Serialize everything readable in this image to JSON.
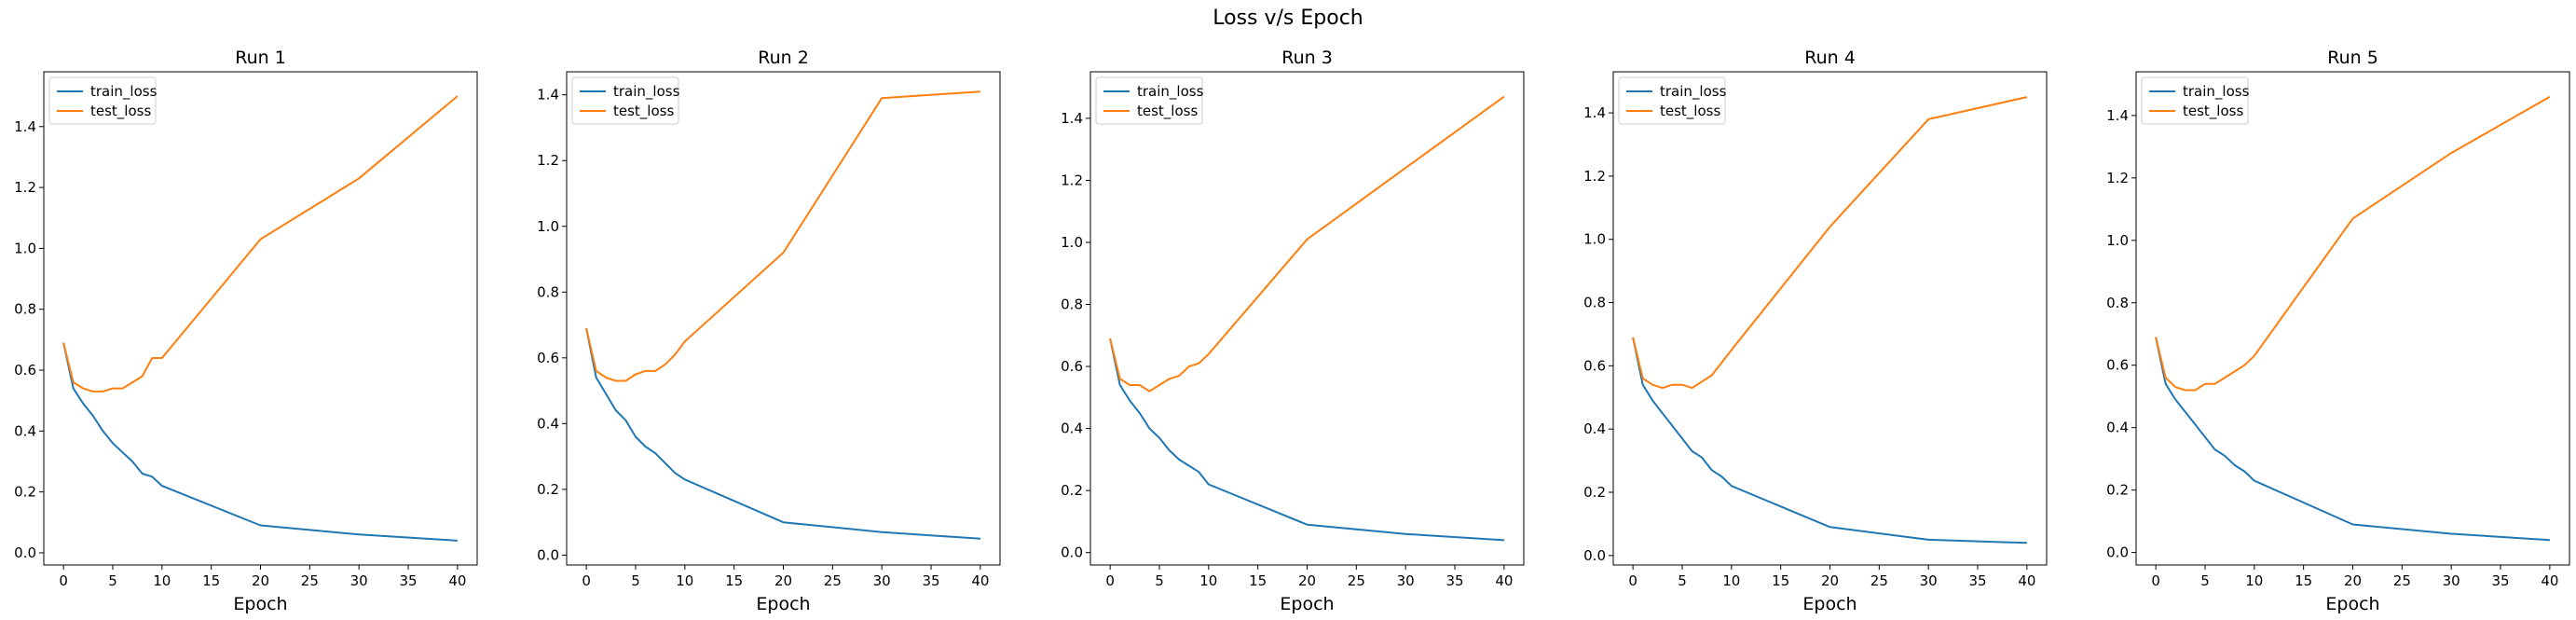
{
  "figure": {
    "title": "Loss v/s Epoch"
  },
  "colors": {
    "train_loss": "#1f77b4",
    "test_loss": "#ff7f0e"
  },
  "chart_data": [
    {
      "type": "line",
      "title": "Run 1",
      "xlabel": "Epoch",
      "ylabel": "",
      "xlim": [
        -2,
        42
      ],
      "ylim": [
        -0.04,
        1.58
      ],
      "xticks": [
        0,
        5,
        10,
        15,
        20,
        25,
        30,
        35,
        40
      ],
      "yticks": [
        0.0,
        0.2,
        0.4,
        0.6,
        0.8,
        1.0,
        1.2,
        1.4
      ],
      "legend": "upper-left",
      "grid": false,
      "series": [
        {
          "name": "train_loss",
          "x": [
            0,
            1,
            2,
            3,
            4,
            5,
            6,
            7,
            8,
            9,
            10,
            20,
            30,
            40
          ],
          "y": [
            0.69,
            0.54,
            0.49,
            0.45,
            0.4,
            0.36,
            0.33,
            0.3,
            0.26,
            0.25,
            0.22,
            0.09,
            0.06,
            0.04
          ]
        },
        {
          "name": "test_loss",
          "x": [
            0,
            1,
            2,
            3,
            4,
            5,
            6,
            7,
            8,
            9,
            10,
            20,
            30,
            40
          ],
          "y": [
            0.69,
            0.56,
            0.54,
            0.53,
            0.53,
            0.54,
            0.54,
            0.56,
            0.58,
            0.64,
            0.64,
            1.03,
            1.23,
            1.5
          ]
        }
      ]
    },
    {
      "type": "line",
      "title": "Run 2",
      "xlabel": "Epoch",
      "ylabel": "",
      "xlim": [
        -2,
        42
      ],
      "ylim": [
        -0.03,
        1.47
      ],
      "xticks": [
        0,
        5,
        10,
        15,
        20,
        25,
        30,
        35,
        40
      ],
      "yticks": [
        0.0,
        0.2,
        0.4,
        0.6,
        0.8,
        1.0,
        1.2,
        1.4
      ],
      "legend": "upper-left",
      "grid": false,
      "series": [
        {
          "name": "train_loss",
          "x": [
            0,
            1,
            2,
            3,
            4,
            5,
            6,
            7,
            8,
            9,
            10,
            20,
            30,
            40
          ],
          "y": [
            0.69,
            0.54,
            0.49,
            0.44,
            0.41,
            0.36,
            0.33,
            0.31,
            0.28,
            0.25,
            0.23,
            0.1,
            0.07,
            0.05
          ]
        },
        {
          "name": "test_loss",
          "x": [
            0,
            1,
            2,
            3,
            4,
            5,
            6,
            7,
            8,
            9,
            10,
            20,
            30,
            40
          ],
          "y": [
            0.69,
            0.56,
            0.54,
            0.53,
            0.53,
            0.55,
            0.56,
            0.56,
            0.58,
            0.61,
            0.65,
            0.92,
            1.39,
            1.41
          ]
        }
      ]
    },
    {
      "type": "line",
      "title": "Run 3",
      "xlabel": "Epoch",
      "ylabel": "",
      "xlim": [
        -2,
        42
      ],
      "ylim": [
        -0.04,
        1.55
      ],
      "xticks": [
        0,
        5,
        10,
        15,
        20,
        25,
        30,
        35,
        40
      ],
      "yticks": [
        0.0,
        0.2,
        0.4,
        0.6,
        0.8,
        1.0,
        1.2,
        1.4
      ],
      "legend": "upper-left",
      "grid": false,
      "series": [
        {
          "name": "train_loss",
          "x": [
            0,
            1,
            2,
            3,
            4,
            5,
            6,
            7,
            8,
            9,
            10,
            20,
            30,
            40
          ],
          "y": [
            0.69,
            0.54,
            0.49,
            0.45,
            0.4,
            0.37,
            0.33,
            0.3,
            0.28,
            0.26,
            0.22,
            0.09,
            0.06,
            0.04
          ]
        },
        {
          "name": "test_loss",
          "x": [
            0,
            1,
            2,
            3,
            4,
            5,
            6,
            7,
            8,
            9,
            10,
            20,
            30,
            40
          ],
          "y": [
            0.69,
            0.56,
            0.54,
            0.54,
            0.52,
            0.54,
            0.56,
            0.57,
            0.6,
            0.61,
            0.64,
            1.01,
            1.24,
            1.47
          ]
        }
      ]
    },
    {
      "type": "line",
      "title": "Run 4",
      "xlabel": "Epoch",
      "ylabel": "",
      "xlim": [
        -2,
        42
      ],
      "ylim": [
        -0.03,
        1.53
      ],
      "xticks": [
        0,
        5,
        10,
        15,
        20,
        25,
        30,
        35,
        40
      ],
      "yticks": [
        0.0,
        0.2,
        0.4,
        0.6,
        0.8,
        1.0,
        1.2,
        1.4
      ],
      "legend": "upper-left",
      "grid": false,
      "series": [
        {
          "name": "train_loss",
          "x": [
            0,
            1,
            2,
            3,
            4,
            5,
            6,
            7,
            8,
            9,
            10,
            20,
            30,
            40
          ],
          "y": [
            0.69,
            0.54,
            0.49,
            0.45,
            0.41,
            0.37,
            0.33,
            0.31,
            0.27,
            0.25,
            0.22,
            0.09,
            0.05,
            0.04
          ]
        },
        {
          "name": "test_loss",
          "x": [
            0,
            1,
            2,
            3,
            4,
            5,
            6,
            7,
            8,
            9,
            10,
            20,
            30,
            40
          ],
          "y": [
            0.69,
            0.56,
            0.54,
            0.53,
            0.54,
            0.54,
            0.53,
            0.55,
            0.57,
            0.61,
            0.65,
            1.04,
            1.38,
            1.45
          ]
        }
      ]
    },
    {
      "type": "line",
      "title": "Run 5",
      "xlabel": "Epoch",
      "ylabel": "",
      "xlim": [
        -2,
        42
      ],
      "ylim": [
        -0.04,
        1.54
      ],
      "xticks": [
        0,
        5,
        10,
        15,
        20,
        25,
        30,
        35,
        40
      ],
      "yticks": [
        0.0,
        0.2,
        0.4,
        0.6,
        0.8,
        1.0,
        1.2,
        1.4
      ],
      "legend": "upper-left",
      "grid": false,
      "series": [
        {
          "name": "train_loss",
          "x": [
            0,
            1,
            2,
            3,
            4,
            5,
            6,
            7,
            8,
            9,
            10,
            20,
            30,
            40
          ],
          "y": [
            0.69,
            0.54,
            0.49,
            0.45,
            0.41,
            0.37,
            0.33,
            0.31,
            0.28,
            0.26,
            0.23,
            0.09,
            0.06,
            0.04
          ]
        },
        {
          "name": "test_loss",
          "x": [
            0,
            1,
            2,
            3,
            4,
            5,
            6,
            7,
            8,
            9,
            10,
            20,
            30,
            40
          ],
          "y": [
            0.69,
            0.56,
            0.53,
            0.52,
            0.52,
            0.54,
            0.54,
            0.56,
            0.58,
            0.6,
            0.63,
            1.07,
            1.28,
            1.46
          ]
        }
      ]
    }
  ]
}
